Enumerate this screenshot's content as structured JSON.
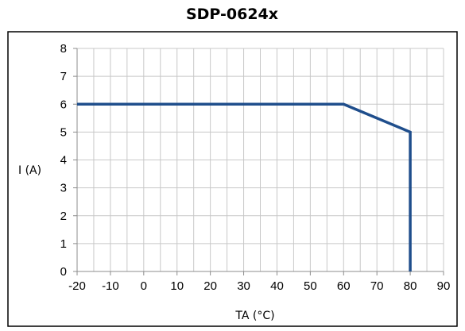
{
  "chart_data": {
    "type": "line",
    "title": "SDP-0624x",
    "xlabel": "TA (°C)",
    "ylabel": "I (A)",
    "xlim": [
      -20,
      90
    ],
    "ylim": [
      0,
      8
    ],
    "x_ticks": [
      -20,
      -10,
      0,
      10,
      20,
      30,
      40,
      50,
      60,
      70,
      80,
      90
    ],
    "y_ticks": [
      0,
      1,
      2,
      3,
      4,
      5,
      6,
      7,
      8
    ],
    "x_minor_step": 5,
    "grid": true,
    "series": [
      {
        "color": "#1f4e8c",
        "points": [
          {
            "x": -20,
            "y": 6
          },
          {
            "x": 60,
            "y": 6
          },
          {
            "x": 80,
            "y": 5
          },
          {
            "x": 80,
            "y": 0
          }
        ]
      }
    ]
  }
}
